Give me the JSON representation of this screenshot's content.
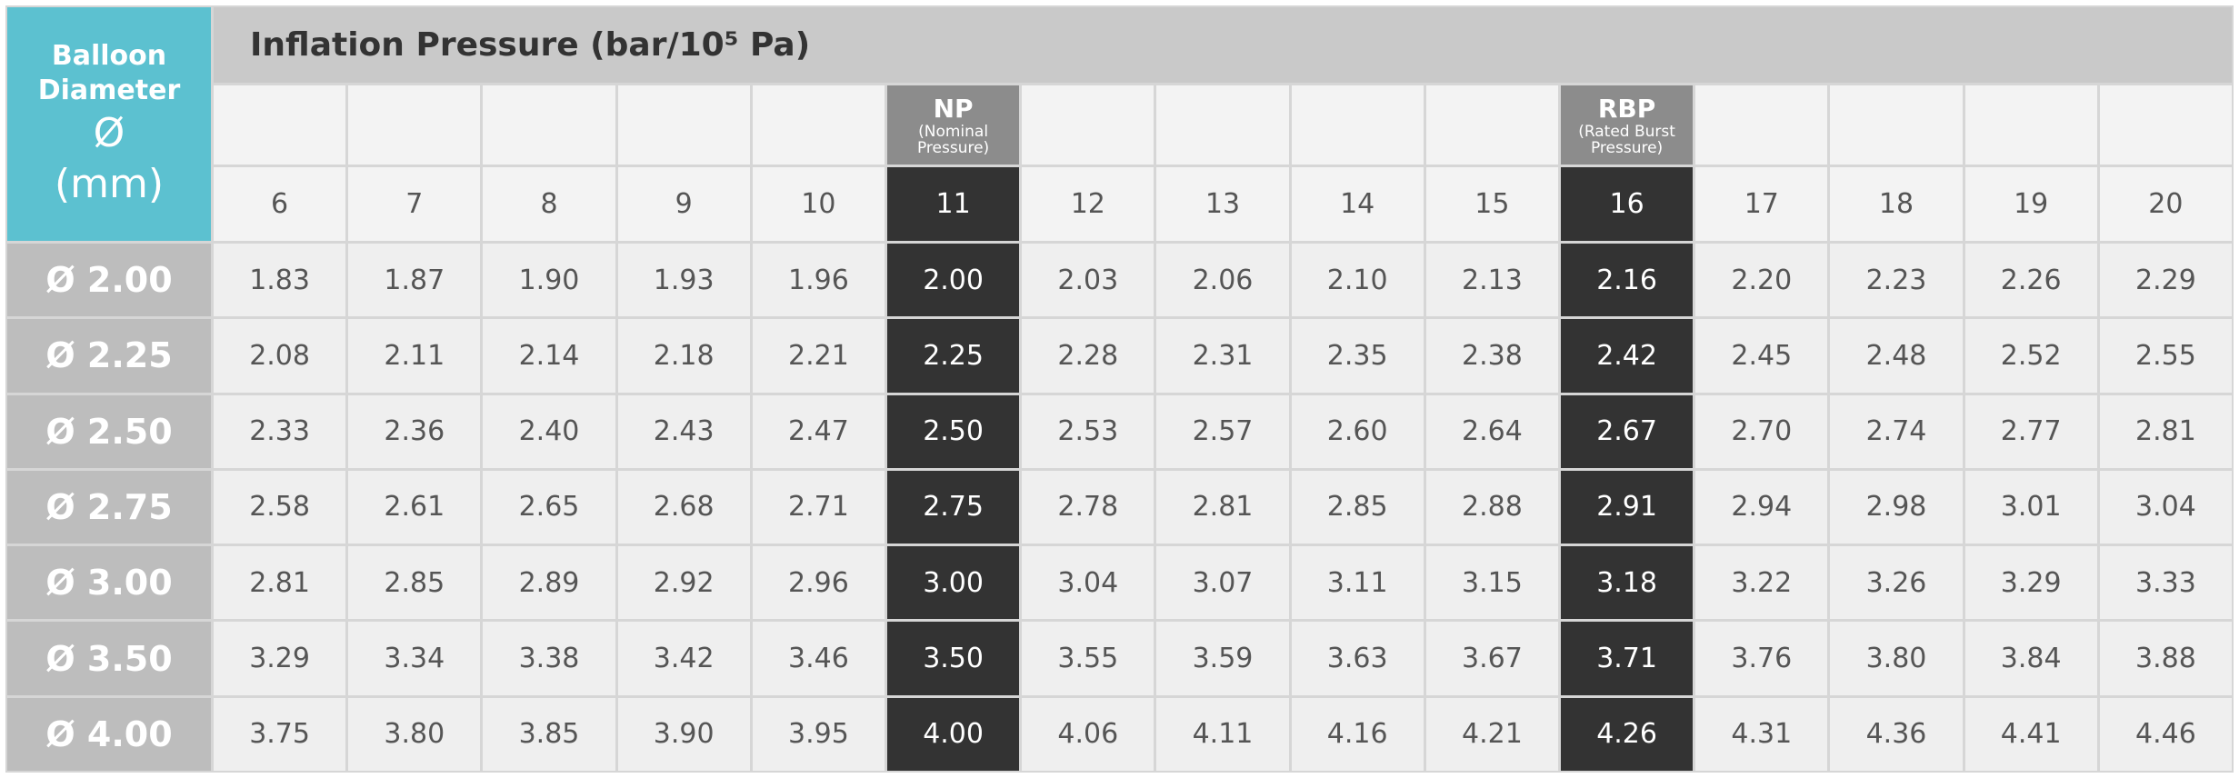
{
  "header": {
    "corner": [
      "Balloon",
      "Diameter",
      "Ø",
      "(mm)"
    ],
    "title": "Inflation Pressure (bar/10⁵ Pa)"
  },
  "columns": [
    {
      "pressure": "6"
    },
    {
      "pressure": "7"
    },
    {
      "pressure": "8"
    },
    {
      "pressure": "9"
    },
    {
      "pressure": "10"
    },
    {
      "pressure": "11",
      "marker": "NP",
      "marker_note": "(Nominal Pressure)"
    },
    {
      "pressure": "12"
    },
    {
      "pressure": "13"
    },
    {
      "pressure": "14"
    },
    {
      "pressure": "15"
    },
    {
      "pressure": "16",
      "marker": "RBP",
      "marker_note": "(Rated Burst Pressure)"
    },
    {
      "pressure": "17"
    },
    {
      "pressure": "18"
    },
    {
      "pressure": "19"
    },
    {
      "pressure": "20"
    }
  ],
  "rows": [
    {
      "diameter": "Ø 2.00",
      "values": [
        "1.83",
        "1.87",
        "1.90",
        "1.93",
        "1.96",
        "2.00",
        "2.03",
        "2.06",
        "2.10",
        "2.13",
        "2.16",
        "2.20",
        "2.23",
        "2.26",
        "2.29"
      ]
    },
    {
      "diameter": "Ø 2.25",
      "values": [
        "2.08",
        "2.11",
        "2.14",
        "2.18",
        "2.21",
        "2.25",
        "2.28",
        "2.31",
        "2.35",
        "2.38",
        "2.42",
        "2.45",
        "2.48",
        "2.52",
        "2.55"
      ]
    },
    {
      "diameter": "Ø 2.50",
      "values": [
        "2.33",
        "2.36",
        "2.40",
        "2.43",
        "2.47",
        "2.50",
        "2.53",
        "2.57",
        "2.60",
        "2.64",
        "2.67",
        "2.70",
        "2.74",
        "2.77",
        "2.81"
      ]
    },
    {
      "diameter": "Ø 2.75",
      "values": [
        "2.58",
        "2.61",
        "2.65",
        "2.68",
        "2.71",
        "2.75",
        "2.78",
        "2.81",
        "2.85",
        "2.88",
        "2.91",
        "2.94",
        "2.98",
        "3.01",
        "3.04"
      ]
    },
    {
      "diameter": "Ø 3.00",
      "values": [
        "2.81",
        "2.85",
        "2.89",
        "2.92",
        "2.96",
        "3.00",
        "3.04",
        "3.07",
        "3.11",
        "3.15",
        "3.18",
        "3.22",
        "3.26",
        "3.29",
        "3.33"
      ]
    },
    {
      "diameter": "Ø 3.50",
      "values": [
        "3.29",
        "3.34",
        "3.38",
        "3.42",
        "3.46",
        "3.50",
        "3.55",
        "3.59",
        "3.63",
        "3.67",
        "3.71",
        "3.76",
        "3.80",
        "3.84",
        "3.88"
      ]
    },
    {
      "diameter": "Ø 4.00",
      "values": [
        "3.75",
        "3.80",
        "3.85",
        "3.90",
        "3.95",
        "4.00",
        "4.06",
        "4.11",
        "4.16",
        "4.21",
        "4.26",
        "4.31",
        "4.36",
        "4.41",
        "4.46"
      ]
    }
  ]
}
